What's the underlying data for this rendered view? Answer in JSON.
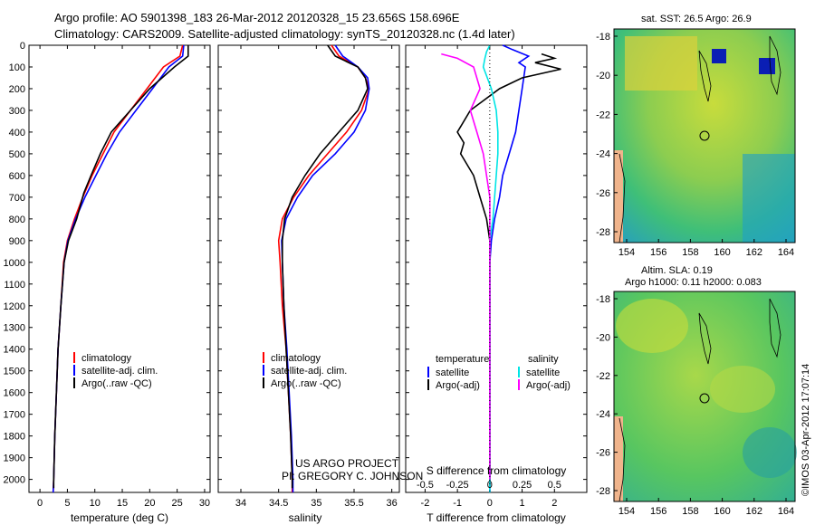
{
  "header": {
    "title_line1": "Argo profile: AO 5901398_183 26-Mar-2012 20120328_15 23.656S 158.696E",
    "title_line2": "Climatology: CARS2009. Satellite-adjusted climatology: synTS_20120328.nc (1.4d later)"
  },
  "colors": {
    "climatology": "#ff0000",
    "satellite": "#0000ff",
    "argo": "#000000",
    "sat_salinity": "#00e5e5",
    "argo_salinity": "#ff00ff"
  },
  "depth_axis": {
    "ticks": [
      "0",
      "100",
      "200",
      "300",
      "400",
      "500",
      "600",
      "700",
      "800",
      "900",
      "1000",
      "1100",
      "1200",
      "1300",
      "1400",
      "1500",
      "1600",
      "1700",
      "1800",
      "1900",
      "2000"
    ]
  },
  "chart_data": [
    {
      "type": "line",
      "id": "temperature",
      "xlabel": "temperature (deg C)",
      "xlim": [
        -2,
        31
      ],
      "ylim": [
        2060,
        0
      ],
      "xticks": [
        "0",
        "5",
        "10",
        "15",
        "20",
        "25",
        "30"
      ],
      "yticks": [
        "0",
        "100",
        "200",
        "300",
        "400",
        "500",
        "600",
        "700",
        "800",
        "900",
        "1000",
        "1100",
        "1200",
        "1300",
        "1400",
        "1500",
        "1600",
        "1700",
        "1800",
        "1900",
        "2000"
      ],
      "legend": [
        "climatology",
        "satellite-adj. clim.",
        "Argo(..raw -QC)"
      ],
      "series": [
        {
          "name": "climatology",
          "color": "#ff0000",
          "points": [
            [
              26,
              0
            ],
            [
              25.5,
              50
            ],
            [
              22.5,
              100
            ],
            [
              19.5,
              200
            ],
            [
              16.5,
              300
            ],
            [
              13.5,
              400
            ],
            [
              11.5,
              500
            ],
            [
              9.5,
              600
            ],
            [
              7.8,
              700
            ],
            [
              6.3,
              800
            ],
            [
              5.0,
              900
            ],
            [
              4.3,
              1000
            ],
            [
              3.8,
              1200
            ],
            [
              3.3,
              1400
            ],
            [
              3.0,
              1600
            ],
            [
              2.7,
              1800
            ],
            [
              2.5,
              2000
            ],
            [
              2.4,
              2060
            ]
          ]
        },
        {
          "name": "satellite-adj. clim.",
          "color": "#0000ff",
          "points": [
            [
              26.2,
              0
            ],
            [
              26.0,
              50
            ],
            [
              23.5,
              100
            ],
            [
              20.5,
              200
            ],
            [
              17.5,
              300
            ],
            [
              14.5,
              400
            ],
            [
              12.2,
              500
            ],
            [
              10.2,
              600
            ],
            [
              8.2,
              700
            ],
            [
              6.5,
              800
            ],
            [
              5.1,
              900
            ],
            [
              4.4,
              1000
            ],
            [
              3.8,
              1200
            ],
            [
              3.3,
              1400
            ],
            [
              3.0,
              1600
            ],
            [
              2.7,
              1800
            ],
            [
              2.5,
              2000
            ],
            [
              2.4,
              2060
            ]
          ]
        },
        {
          "name": "Argo(..raw -QC)",
          "color": "#000000",
          "points": [
            [
              27,
              0
            ],
            [
              27,
              50
            ],
            [
              24.5,
              100
            ],
            [
              20,
              200
            ],
            [
              16.5,
              300
            ],
            [
              13,
              400
            ],
            [
              11,
              500
            ],
            [
              9.3,
              600
            ],
            [
              8,
              680
            ],
            [
              6.7,
              800
            ],
            [
              5.2,
              900
            ],
            [
              4.4,
              1000
            ],
            [
              3.8,
              1200
            ],
            [
              3.3,
              1400
            ],
            [
              3.0,
              1600
            ],
            [
              2.7,
              1800
            ],
            [
              2.5,
              2000
            ],
            [
              2.5,
              2040
            ]
          ]
        }
      ]
    },
    {
      "type": "line",
      "id": "salinity",
      "xlabel": "salinity",
      "xlim": [
        33.7,
        36.1
      ],
      "ylim": [
        2060,
        0
      ],
      "xticks": [
        "34",
        "34.5",
        "35",
        "35.5",
        "36"
      ],
      "legend": [
        "climatology",
        "satellite-adj. clim.",
        "Argo(..raw -QC)"
      ],
      "series": [
        {
          "name": "climatology",
          "color": "#ff0000",
          "points": [
            [
              35.2,
              0
            ],
            [
              35.3,
              50
            ],
            [
              35.55,
              100
            ],
            [
              35.65,
              150
            ],
            [
              35.7,
              200
            ],
            [
              35.6,
              300
            ],
            [
              35.4,
              400
            ],
            [
              35.15,
              500
            ],
            [
              34.9,
              600
            ],
            [
              34.7,
              700
            ],
            [
              34.55,
              800
            ],
            [
              34.5,
              900
            ],
            [
              34.52,
              1000
            ],
            [
              34.55,
              1200
            ],
            [
              34.6,
              1400
            ],
            [
              34.63,
              1600
            ],
            [
              34.66,
              1800
            ],
            [
              34.68,
              2000
            ],
            [
              34.68,
              2060
            ]
          ]
        },
        {
          "name": "satellite-adj. clim.",
          "color": "#0000ff",
          "points": [
            [
              35.25,
              0
            ],
            [
              35.35,
              50
            ],
            [
              35.55,
              100
            ],
            [
              35.68,
              150
            ],
            [
              35.7,
              200
            ],
            [
              35.65,
              300
            ],
            [
              35.5,
              400
            ],
            [
              35.25,
              500
            ],
            [
              34.95,
              600
            ],
            [
              34.75,
              700
            ],
            [
              34.6,
              800
            ],
            [
              34.54,
              900
            ],
            [
              34.55,
              1000
            ],
            [
              34.57,
              1200
            ],
            [
              34.61,
              1400
            ],
            [
              34.64,
              1600
            ],
            [
              34.67,
              1800
            ],
            [
              34.69,
              2000
            ],
            [
              34.69,
              2060
            ]
          ]
        },
        {
          "name": "Argo(..raw -QC)",
          "color": "#000000",
          "points": [
            [
              35.15,
              0
            ],
            [
              35.25,
              50
            ],
            [
              35.55,
              100
            ],
            [
              35.65,
              150
            ],
            [
              35.68,
              200
            ],
            [
              35.55,
              300
            ],
            [
              35.3,
              400
            ],
            [
              35.05,
              500
            ],
            [
              34.85,
              600
            ],
            [
              34.68,
              700
            ],
            [
              34.58,
              800
            ],
            [
              34.55,
              900
            ],
            [
              34.55,
              1000
            ],
            [
              34.57,
              1200
            ],
            [
              34.6,
              1400
            ],
            [
              34.63,
              1600
            ],
            [
              34.66,
              1800
            ],
            [
              34.68,
              2000
            ],
            [
              34.68,
              2040
            ]
          ]
        }
      ]
    },
    {
      "type": "line",
      "id": "differences",
      "xlabel": "T difference from climatology",
      "xlabel_top": "S difference from climatology",
      "xlim": [
        -2.6,
        3.0
      ],
      "ylim": [
        2060,
        0
      ],
      "xticks": [
        "-2",
        "-1",
        "0",
        "1",
        "2"
      ],
      "xticks_top": [
        "-0.5",
        "-0.25",
        "0",
        "0.25",
        "0.5"
      ],
      "legend_titles": [
        "temperature",
        "salinity"
      ],
      "legend": [
        "satellite",
        "Argo(-adj)",
        "satellite",
        "Argo(-adj)"
      ],
      "series": [
        {
          "name": "satellite",
          "color": "#0000ff",
          "points": [
            [
              0.4,
              0
            ],
            [
              0.7,
              20
            ],
            [
              1.2,
              50
            ],
            [
              0.9,
              80
            ],
            [
              1.1,
              100
            ],
            [
              1.0,
              200
            ],
            [
              0.9,
              300
            ],
            [
              0.8,
              400
            ],
            [
              0.6,
              500
            ],
            [
              0.4,
              600
            ],
            [
              0.3,
              700
            ],
            [
              0.15,
              800
            ],
            [
              0.05,
              900
            ],
            [
              0,
              1000
            ],
            [
              0,
              1500
            ],
            [
              0,
              2060
            ]
          ]
        },
        {
          "name": "Argo(-adj)",
          "color": "#000000",
          "points": [
            [
              1.6,
              40
            ],
            [
              2.0,
              60
            ],
            [
              1.4,
              80
            ],
            [
              2.2,
              110
            ],
            [
              1.0,
              150
            ],
            [
              0.3,
              200
            ],
            [
              -0.6,
              300
            ],
            [
              -1.0,
              400
            ],
            [
              -0.8,
              450
            ],
            [
              -0.9,
              500
            ],
            [
              -0.5,
              600
            ],
            [
              -0.3,
              700
            ],
            [
              -0.1,
              800
            ],
            [
              0,
              900
            ],
            [
              0,
              1100
            ],
            [
              0,
              2040
            ]
          ]
        },
        {
          "name": "satellite",
          "color": "#00e5e5",
          "points": [
            [
              0,
              0
            ],
            [
              -0.1,
              30
            ],
            [
              -0.15,
              60
            ],
            [
              -0.2,
              100
            ],
            [
              0.05,
              200
            ],
            [
              0.2,
              300
            ],
            [
              0.25,
              400
            ],
            [
              0.25,
              500
            ],
            [
              0.2,
              600
            ],
            [
              0.15,
              700
            ],
            [
              0.1,
              800
            ],
            [
              0,
              900
            ],
            [
              0,
              1200
            ],
            [
              0,
              2060
            ]
          ]
        },
        {
          "name": "Argo(-adj)",
          "color": "#ff00ff",
          "points": [
            [
              -1.5,
              40
            ],
            [
              -1.0,
              60
            ],
            [
              -0.5,
              100
            ],
            [
              -0.3,
              200
            ],
            [
              -0.6,
              300
            ],
            [
              -0.4,
              400
            ],
            [
              -0.2,
              500
            ],
            [
              -0.1,
              600
            ],
            [
              0,
              700
            ],
            [
              0,
              800
            ],
            [
              0,
              2000
            ]
          ]
        }
      ]
    }
  ],
  "maps": {
    "sst": {
      "title": "sat. SST: 26.5 Argo: 26.9",
      "lat_ticks": [
        "-18",
        "-20",
        "-22",
        "-24",
        "-26",
        "-28"
      ],
      "lon_ticks": [
        "154",
        "156",
        "158",
        "160",
        "162",
        "164"
      ]
    },
    "sla": {
      "title_line1": "Altim. SLA: 0.19",
      "title_line2": "Argo h1000: 0.11 h2000: 0.083",
      "lat_ticks": [
        "-18",
        "-20",
        "-22",
        "-24",
        "-26",
        "-28"
      ],
      "lon_ticks": [
        "154",
        "156",
        "158",
        "160",
        "162",
        "164"
      ]
    }
  },
  "annotations": {
    "project_line1": "US ARGO PROJECT",
    "project_line2": "PI: GREGORY C. JOHNSON",
    "stamp": "©IMOS 03-Apr-2012 17:07:14"
  }
}
